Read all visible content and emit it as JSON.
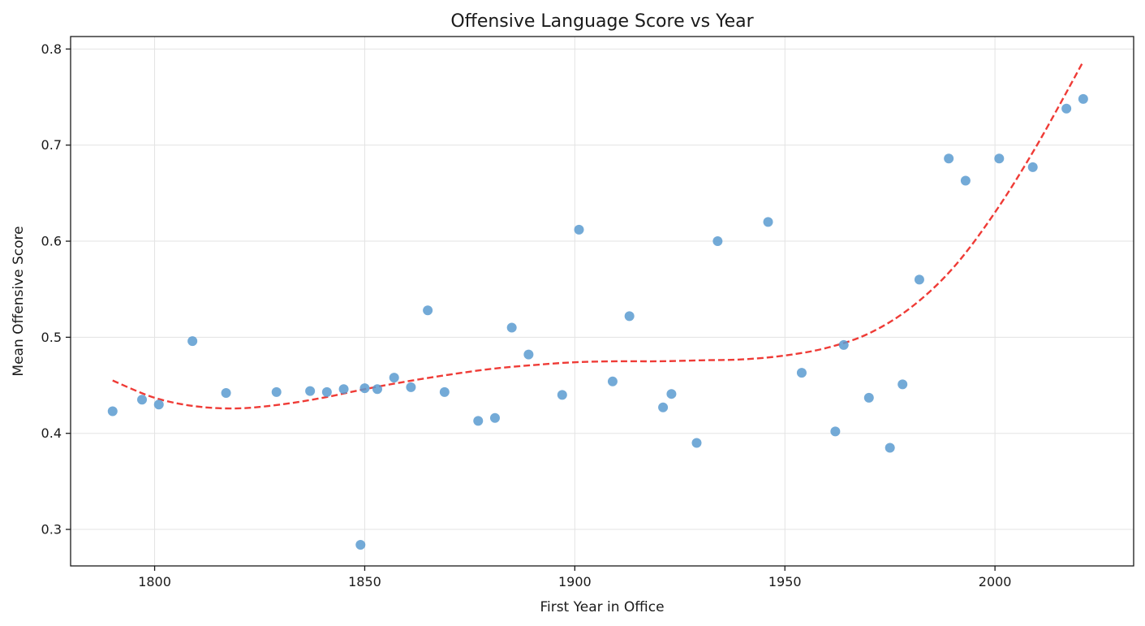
{
  "chart_data": {
    "type": "scatter",
    "title": "Offensive Language Score vs Year",
    "xlabel": "First Year in Office",
    "ylabel": "Mean Offensive Score",
    "xlim": [
      1780,
      2033
    ],
    "ylim": [
      0.262,
      0.813
    ],
    "xticks": [
      1800,
      1850,
      1900,
      1950,
      2000
    ],
    "yticks": [
      0.3,
      0.4,
      0.5,
      0.6,
      0.7,
      0.8
    ],
    "grid": true,
    "series": [
      {
        "kind": "points",
        "color": "#5b9bd0",
        "x": [
          1790,
          1797,
          1801,
          1809,
          1817,
          1829,
          1837,
          1841,
          1845,
          1849,
          1850,
          1853,
          1857,
          1861,
          1865,
          1869,
          1877,
          1881,
          1885,
          1889,
          1897,
          1901,
          1909,
          1913,
          1921,
          1923,
          1929,
          1934,
          1946,
          1954,
          1962,
          1964,
          1970,
          1975,
          1978,
          1982,
          1989,
          1993,
          2001,
          2009,
          2017,
          2021
        ],
        "y": [
          0.423,
          0.435,
          0.43,
          0.496,
          0.442,
          0.443,
          0.444,
          0.443,
          0.446,
          0.284,
          0.447,
          0.446,
          0.458,
          0.448,
          0.528,
          0.443,
          0.413,
          0.416,
          0.51,
          0.482,
          0.44,
          0.612,
          0.454,
          0.522,
          0.427,
          0.441,
          0.39,
          0.6,
          0.62,
          0.463,
          0.402,
          0.492,
          0.437,
          0.385,
          0.451,
          0.56,
          0.686,
          0.663,
          0.686,
          0.677,
          0.738,
          0.748
        ]
      },
      {
        "kind": "trend",
        "color": "#ef3b36",
        "line_style": "dashed",
        "x": [
          1790,
          1800,
          1810,
          1820,
          1830,
          1840,
          1850,
          1860,
          1870,
          1880,
          1890,
          1900,
          1910,
          1920,
          1930,
          1940,
          1950,
          1960,
          1970,
          1980,
          1990,
          2000,
          2010,
          2021
        ],
        "y": [
          0.455,
          0.437,
          0.428,
          0.426,
          0.43,
          0.437,
          0.446,
          0.454,
          0.461,
          0.467,
          0.471,
          0.474,
          0.475,
          0.475,
          0.476,
          0.477,
          0.481,
          0.489,
          0.504,
          0.531,
          0.572,
          0.63,
          0.7,
          0.787
        ]
      }
    ]
  }
}
